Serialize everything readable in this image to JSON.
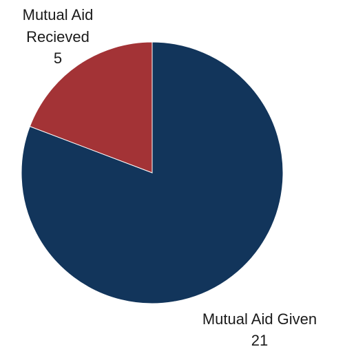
{
  "chart_data": {
    "type": "pie",
    "title": "",
    "slices": [
      {
        "label": "Mutual Aid Given",
        "value": 21,
        "color": "#12355b"
      },
      {
        "label": "Mutual Aid Recieved",
        "value": 5,
        "color": "#a33336"
      }
    ],
    "start_angle_deg": 0,
    "direction": "clockwise",
    "legend": "none",
    "data_labels": "outside"
  },
  "labels": {
    "given_line1": "Mutual Aid Given",
    "given_value": "21",
    "received_line1": "Mutual Aid",
    "received_line2": "Recieved",
    "received_value": "5"
  }
}
